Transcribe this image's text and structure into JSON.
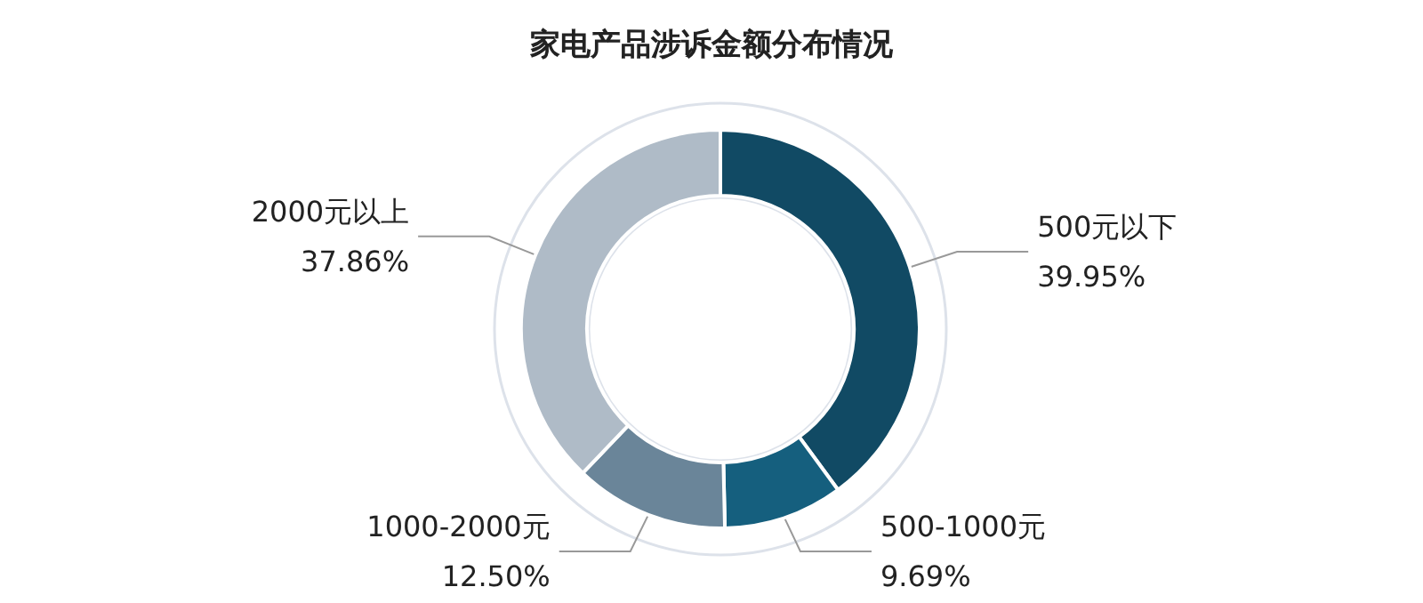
{
  "chart_data": {
    "type": "donut",
    "title": "家电产品涉诉金额分布情况",
    "categories": [
      "500元以下",
      "500-1000元",
      "1000-2000元",
      "2000元以上"
    ],
    "values": [
      39.95,
      9.69,
      12.5,
      37.86
    ],
    "value_labels": [
      "39.95%",
      "9.69%",
      "12.50%",
      "37.86%"
    ],
    "colors": [
      "#114a64",
      "#155f7e",
      "#6a8599",
      "#afbbc7"
    ],
    "legend": false
  }
}
